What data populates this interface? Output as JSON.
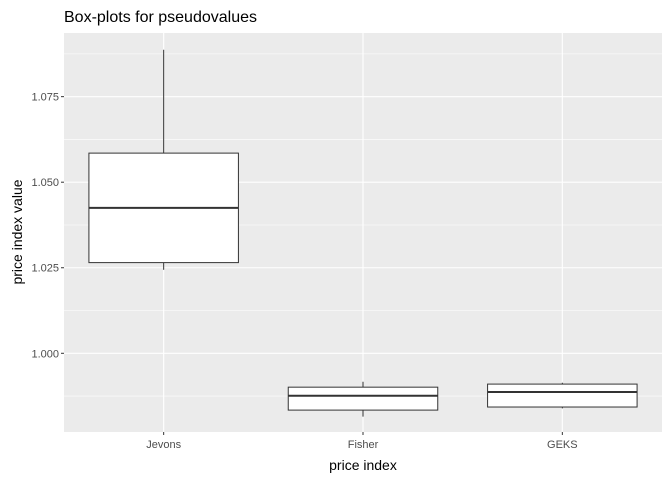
{
  "chart_data": {
    "type": "box",
    "title": "Box-plots for pseudovalues",
    "xlabel": "price index",
    "ylabel": "price index value",
    "categories": [
      "Jevons",
      "Fisher",
      "GEKS"
    ],
    "boxes": [
      {
        "category": "Jevons",
        "whisker_low": 1.0244,
        "q1": 1.0265,
        "median": 1.0425,
        "q3": 1.0585,
        "whisker_high": 1.0887
      },
      {
        "category": "Fisher",
        "whisker_low": 0.9815,
        "q1": 0.9834,
        "median": 0.9876,
        "q3": 0.9901,
        "whisker_high": 0.9917
      },
      {
        "category": "GEKS",
        "whisker_low": 0.9839,
        "q1": 0.9843,
        "median": 0.9887,
        "q3": 0.991,
        "whisker_high": 0.9914
      }
    ],
    "yticks": [
      1.0,
      1.025,
      1.05,
      1.075
    ],
    "ytick_labels": [
      "1.000",
      "1.025",
      "1.050",
      "1.075"
    ],
    "ylim": [
      0.977,
      1.0936
    ],
    "grid": true,
    "colors": {
      "panel": "#EBEBEB",
      "grid": "#FFFFFF",
      "box_fill": "#FFFFFF",
      "box_line": "#333333"
    }
  }
}
